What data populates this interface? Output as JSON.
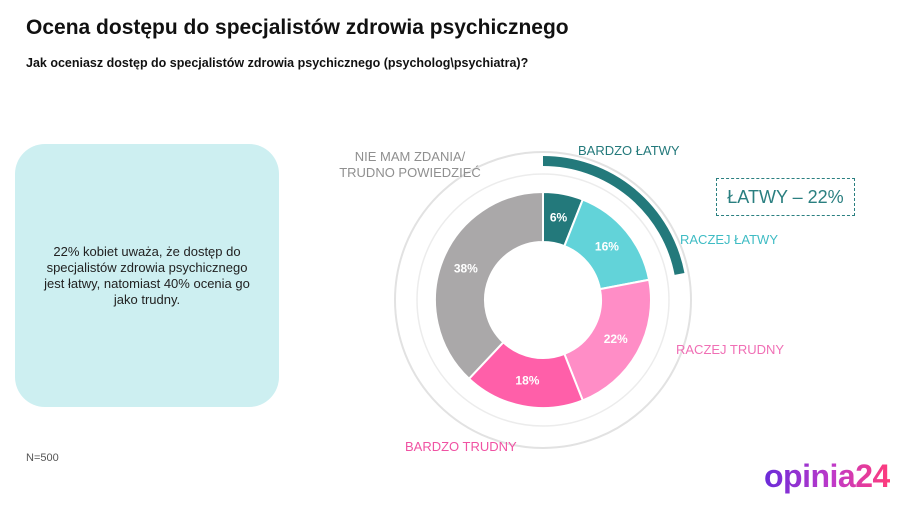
{
  "chart_data": {
    "type": "donut",
    "title": "Ocena dostępu do specjalistów zdrowia psychicznego",
    "subtitle": "Jak oceniasz dostęp do specjalistów zdrowia psychicznego (psycholog\\psychiatra)?",
    "categories": [
      "BARDZO ŁATWY",
      "RACZEJ ŁATWY",
      "RACZEJ TRUDNY",
      "BARDZO TRUDNY",
      "NIE MAM ZDANIA/ TRUDNO POWIEDZIEĆ"
    ],
    "values": [
      6,
      16,
      22,
      18,
      38
    ],
    "value_labels": [
      "6%",
      "16%",
      "22%",
      "18%",
      "38%"
    ],
    "colors": [
      "#23797b",
      "#62d3d9",
      "#ff8dc6",
      "#ff5fa9",
      "#aaa8a9"
    ],
    "label_colors": [
      "#23797b",
      "#3fbcc4",
      "#f06fb5",
      "#f052a3",
      "#8f8f8f"
    ],
    "annotation": "ŁATWY – 22%"
  },
  "note": "22% kobiet uważa, że dostęp do specjalistów zdrowia psychicznego jest łatwy, natomiast 40% ocenia go jako trudny.",
  "sample": "N=500",
  "logo": "opinia24"
}
